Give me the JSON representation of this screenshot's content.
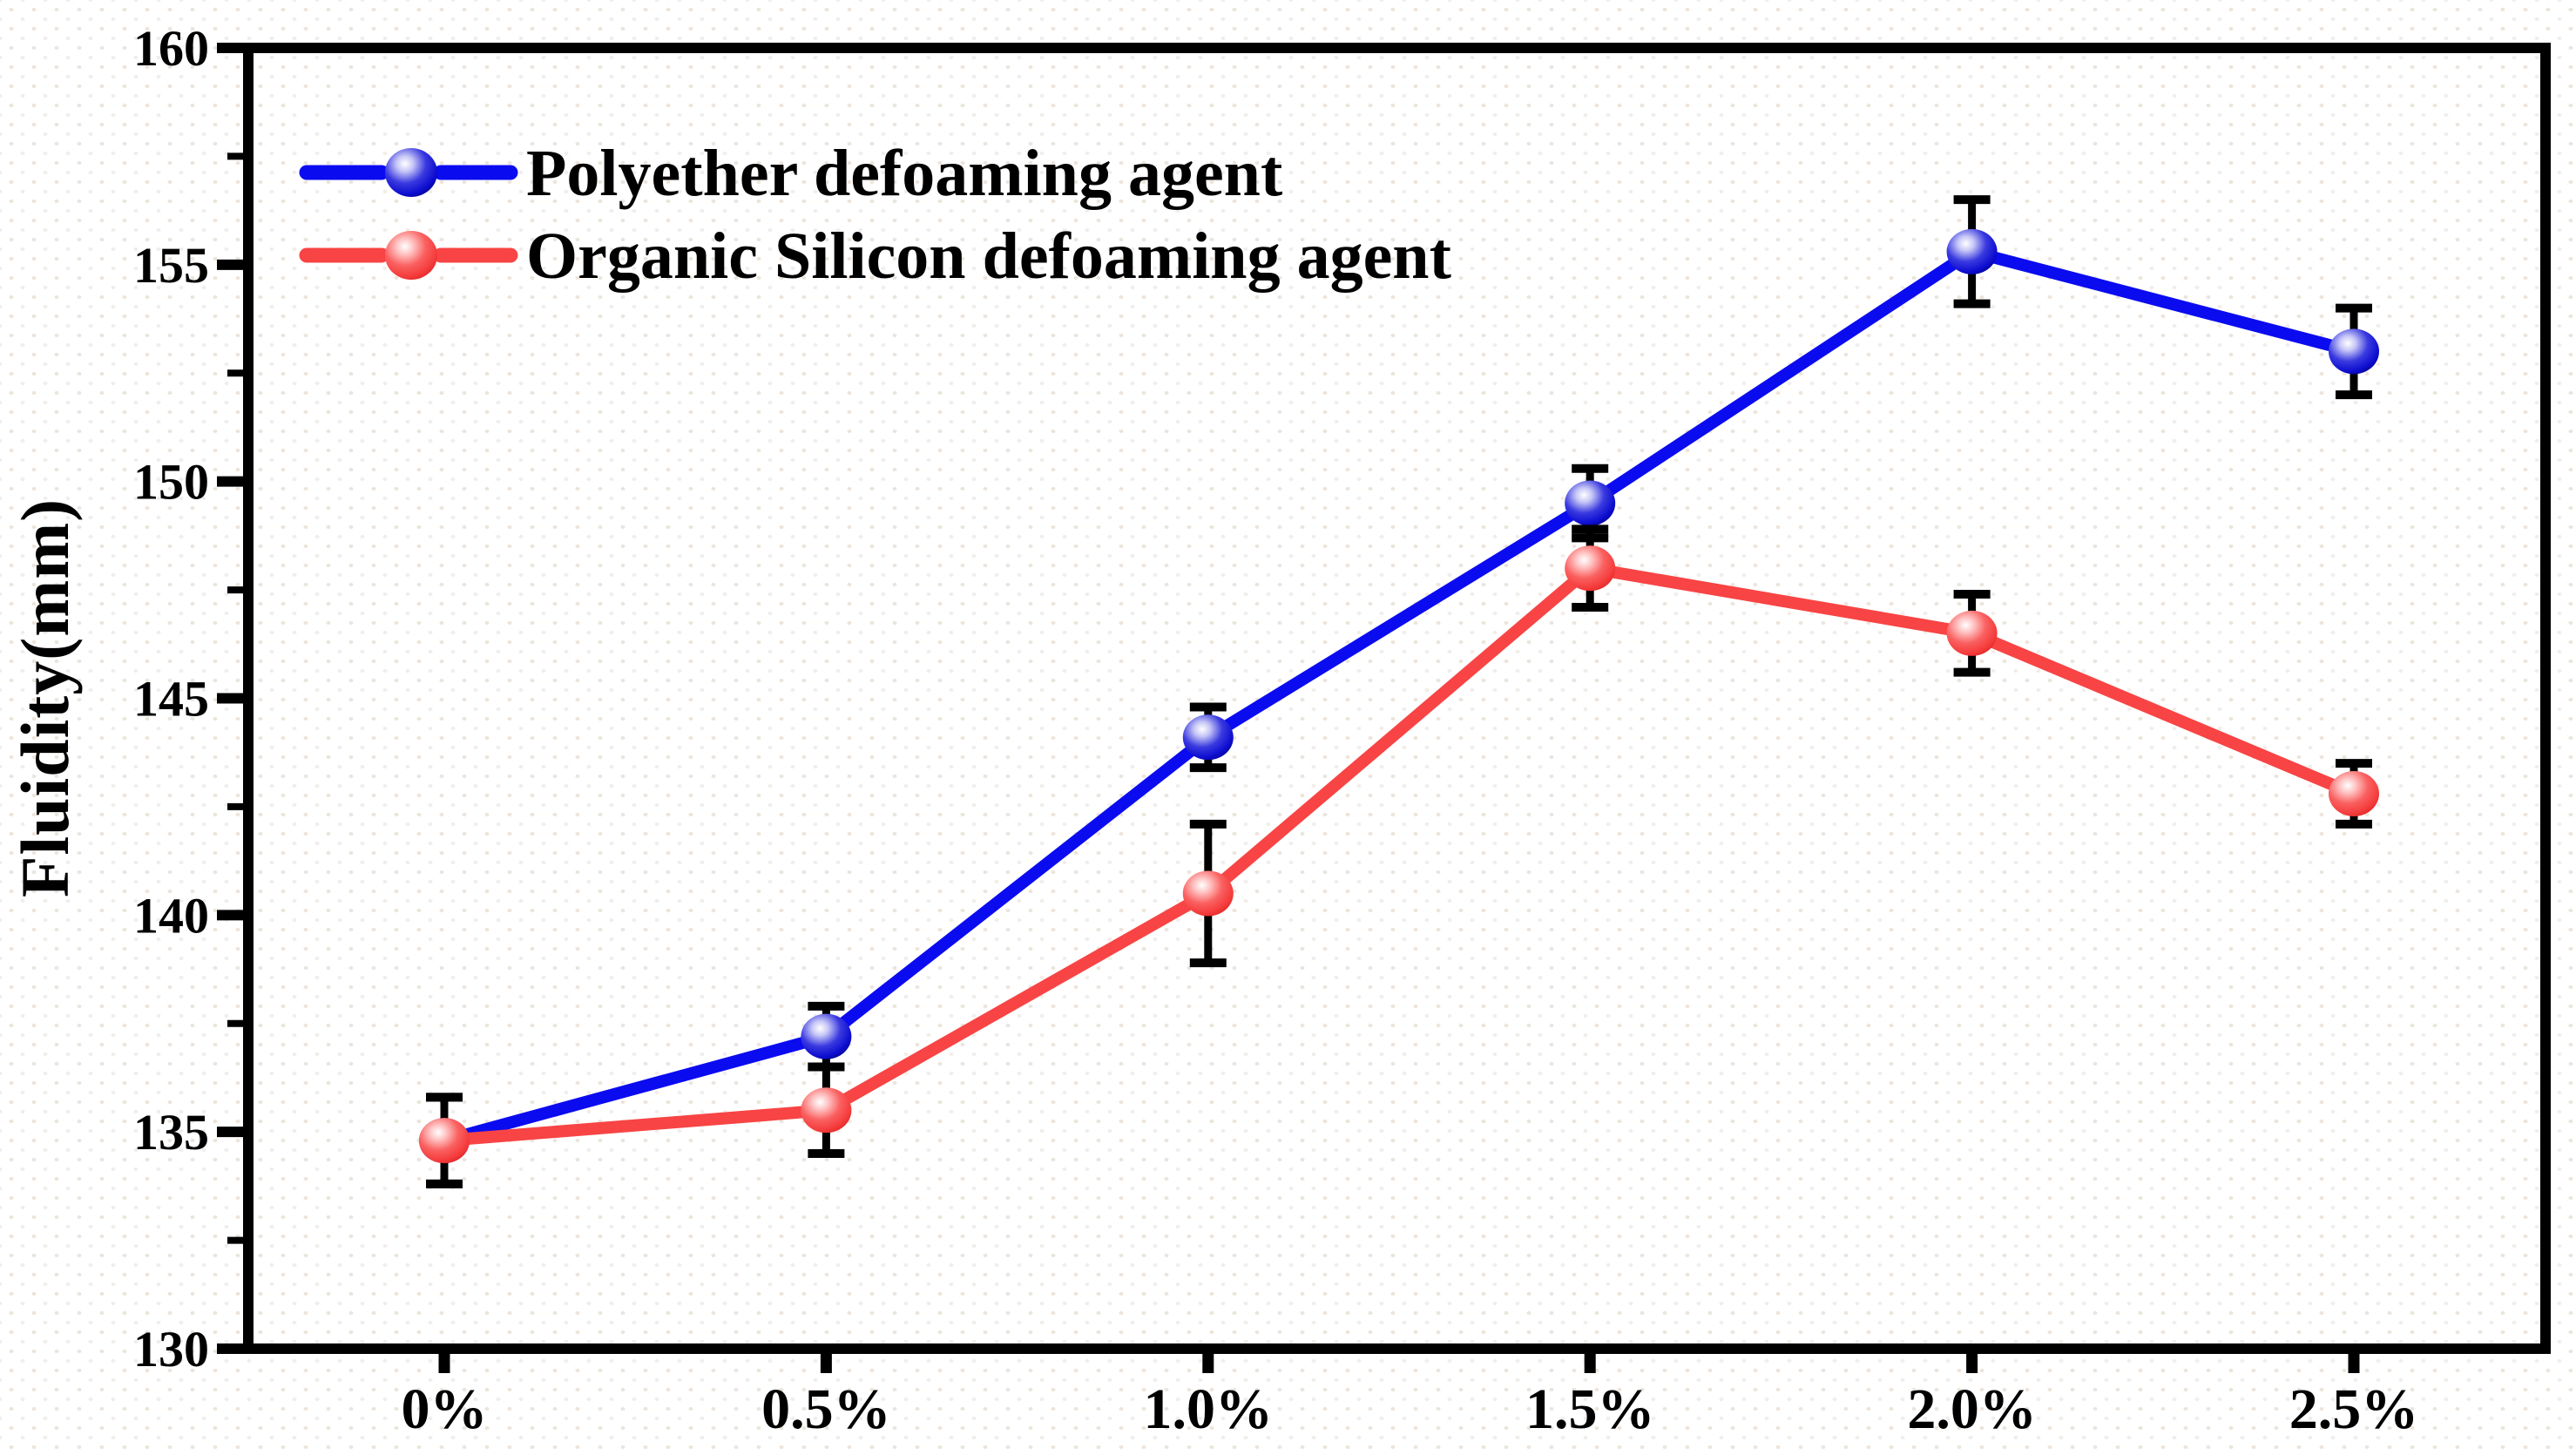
{
  "figure": {
    "background_color": "#ffffff",
    "frame_color": "#000000",
    "error_bar_color": "#000000"
  },
  "chart_data": {
    "type": "line",
    "title": "",
    "xlabel": "",
    "ylabel": "Fluidity(mm)",
    "categories": [
      "0%",
      "0.5%",
      "1.0%",
      "1.5%",
      "2.0%",
      "2.5%"
    ],
    "x_numeric": [
      0,
      0.5,
      1.0,
      1.5,
      2.0,
      2.5
    ],
    "ylim": [
      130,
      160
    ],
    "y_major_ticks": [
      130,
      135,
      140,
      145,
      150,
      155,
      160
    ],
    "y_major_step": 5,
    "y_minor_step": 2.5,
    "grid": false,
    "legend_position": "top-left",
    "series": [
      {
        "name": "Polyether defoaming agent",
        "color": "#0b0bf0",
        "values": [
          134.8,
          137.2,
          144.1,
          149.5,
          155.3,
          153.0
        ],
        "errors": [
          1.0,
          0.7,
          0.7,
          0.8,
          1.2,
          1.0
        ],
        "sphere_colors": {
          "highlight": "#ffffff",
          "light": "#c6c6f7",
          "mid": "#3a3ae0",
          "body": "#0d0dd0",
          "rim": "#000078"
        }
      },
      {
        "name": "Organic Silicon defoaming agent",
        "color": "#f84444",
        "values": [
          134.8,
          135.5,
          140.5,
          148.0,
          146.5,
          142.8
        ],
        "errors": [
          1.0,
          1.0,
          1.6,
          0.9,
          0.9,
          0.7
        ],
        "sphere_colors": {
          "highlight": "#ffffff",
          "light": "#ffc4c4",
          "mid": "#fa6060",
          "body": "#f53b3b",
          "rim": "#d51f1f"
        }
      }
    ]
  }
}
